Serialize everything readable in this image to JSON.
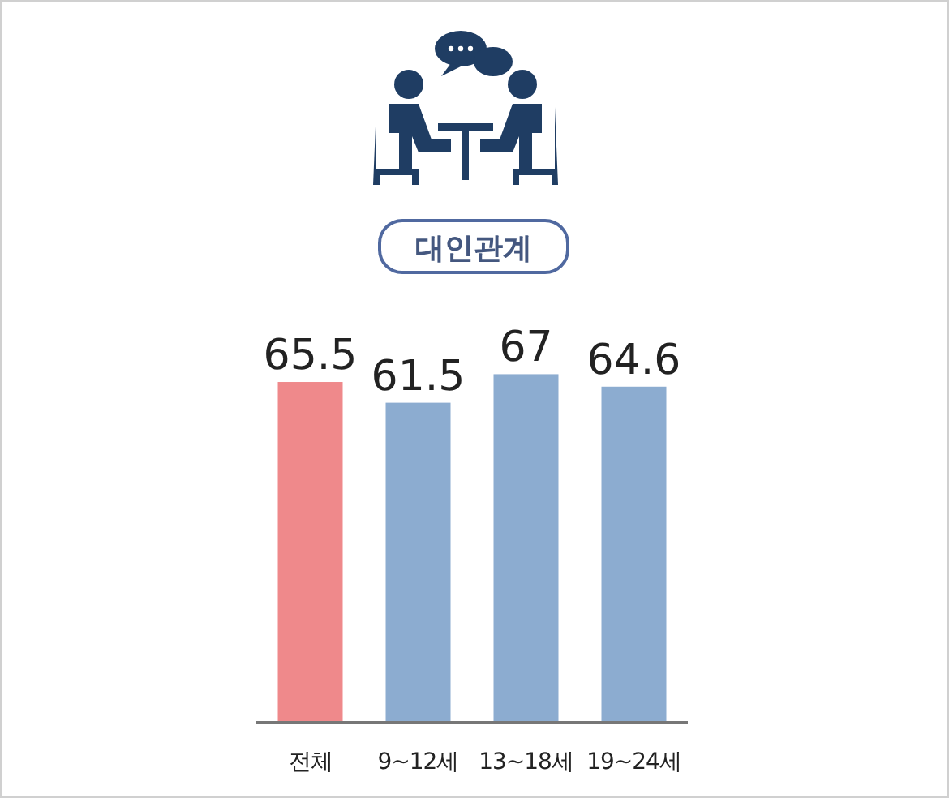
{
  "chart_data": {
    "type": "bar",
    "title": "대인관계",
    "categories": [
      "전체",
      "9~12세",
      "13~18세",
      "19~24세"
    ],
    "values": [
      65.5,
      61.5,
      67,
      64.6
    ],
    "colors": [
      "#ef898b",
      "#8cacd0",
      "#8cacd0",
      "#8cacd0"
    ],
    "data_labels": true
  }
}
